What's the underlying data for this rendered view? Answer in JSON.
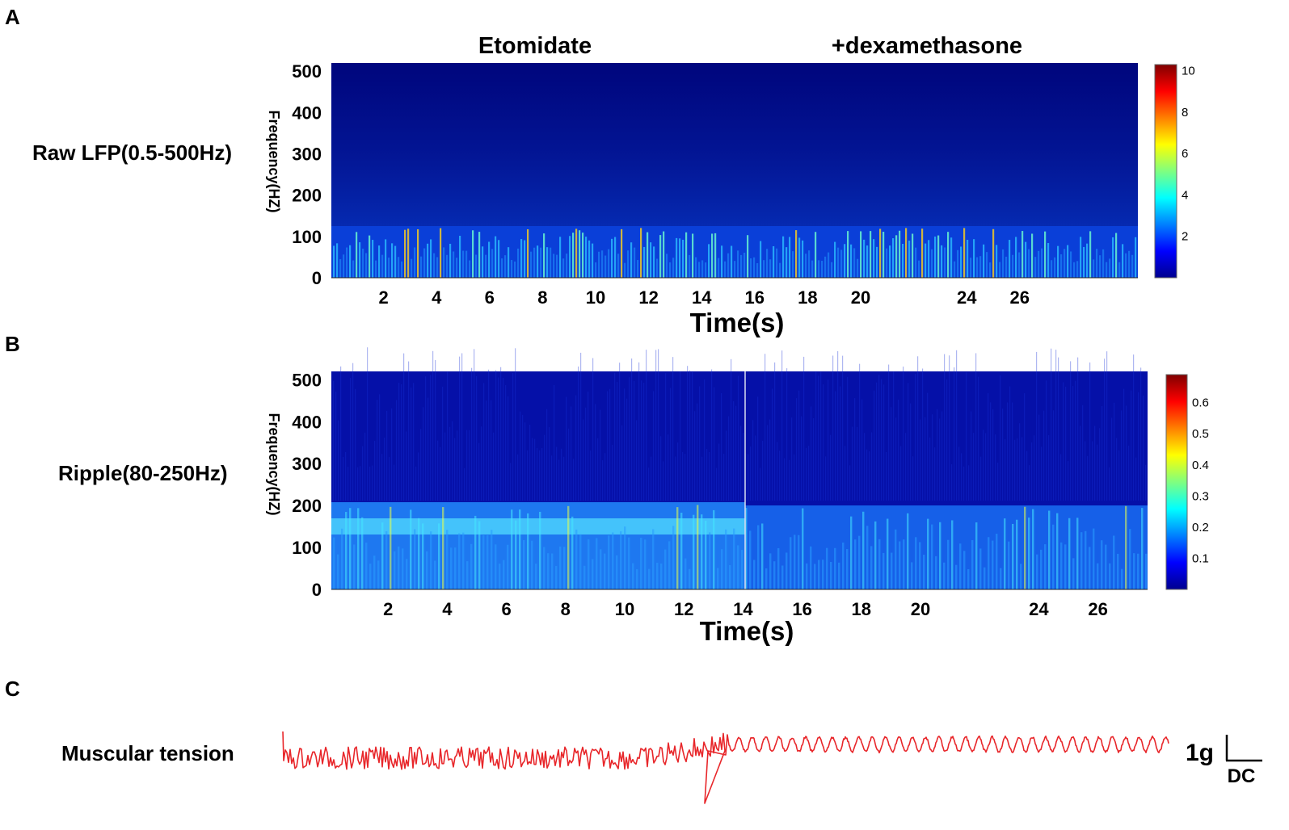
{
  "panels": {
    "A": {
      "letter": "A"
    },
    "B": {
      "letter": "B"
    },
    "C": {
      "letter": "C"
    }
  },
  "conditions": [
    "Etomidate",
    "+dexamethasone"
  ],
  "chart_data": [
    {
      "id": "A",
      "type": "heatmap",
      "row_label": "Raw LFP(0.5-500Hz)",
      "xlabel": "Time(s)",
      "ylabel": "Frequency(HZ)",
      "x_ticks": [
        2,
        4,
        6,
        8,
        10,
        12,
        14,
        16,
        18,
        20,
        24,
        26
      ],
      "y_ticks": [
        0,
        100,
        200,
        300,
        400,
        500
      ],
      "ylim": [
        0,
        520
      ],
      "colorbar_ticks": [
        2,
        4,
        6,
        8,
        10
      ],
      "colorbar_range": [
        0,
        10.3
      ],
      "colormap": "jet"
    },
    {
      "id": "B",
      "type": "heatmap",
      "row_label": "Ripple(80-250Hz)",
      "xlabel": "Time(s)",
      "ylabel": "Frequency(HZ)",
      "x_ticks": [
        2,
        4,
        6,
        8,
        10,
        12,
        14,
        16,
        18,
        20,
        24,
        26
      ],
      "y_ticks": [
        0,
        100,
        200,
        300,
        400,
        500
      ],
      "ylim": [
        0,
        520
      ],
      "colorbar_ticks": [
        0.1,
        0.2,
        0.3,
        0.4,
        0.5,
        0.6
      ],
      "colorbar_range": [
        0,
        0.69
      ],
      "colormap": "jet",
      "divider_at": 14
    },
    {
      "id": "C",
      "type": "line",
      "row_label": "Muscular tension",
      "color": "#e8262a",
      "scale_bar": {
        "value_label": "1g",
        "mode_label": "DC"
      }
    }
  ]
}
